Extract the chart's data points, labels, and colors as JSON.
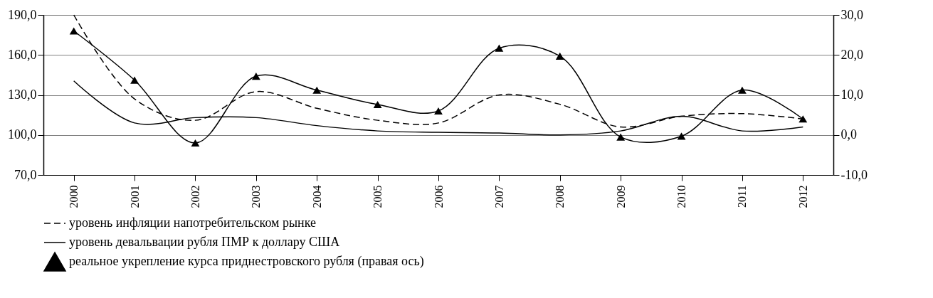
{
  "chart_data": {
    "type": "line",
    "categories": [
      "2000",
      "2001",
      "2002",
      "2003",
      "2004",
      "2005",
      "2006",
      "2007",
      "2008",
      "2009",
      "2010",
      "2011",
      "2012"
    ],
    "series": [
      {
        "name": "уровень инфляции напотребительском рынке",
        "color": "#000000",
        "line_style": "dashed",
        "marker": "none",
        "values": [
          190,
          127,
          111,
          132.5,
          120,
          111,
          109,
          130,
          123,
          106,
          114,
          116,
          112
        ]
      },
      {
        "name": "уровень девальвации рубля ПМР к доллару США",
        "color": "#000000",
        "line_style": "solid",
        "marker": "none",
        "values": [
          140.5,
          109,
          113,
          113,
          107,
          103,
          102,
          101.5,
          100,
          103,
          114,
          103,
          106
        ]
      },
      {
        "name": "реальное укрепление курса приднестровского рубля (правая ось)",
        "color": "#000000",
        "line_style": "solid",
        "marker": "triangle",
        "axis": "y2",
        "values": [
          26,
          13.7,
          -2,
          14.7,
          11.2,
          7.6,
          6,
          21.7,
          19.7,
          -0.5,
          -0.3,
          11.2,
          4
        ]
      }
    ],
    "ylim": [
      70,
      190
    ],
    "yticks": [
      {
        "value": 70,
        "label": "70,0"
      },
      {
        "value": 100,
        "label": "100,0"
      },
      {
        "value": 130,
        "label": "130,0"
      },
      {
        "value": 160,
        "label": "160,0"
      },
      {
        "value": 190,
        "label": "190,0"
      }
    ],
    "y2lim": [
      -10,
      30
    ],
    "y2ticks": [
      {
        "value": -10,
        "label": "-10,0"
      },
      {
        "value": 0,
        "label": "0,0"
      },
      {
        "value": 10,
        "label": "10,0"
      },
      {
        "value": 20,
        "label": "20,0"
      },
      {
        "value": 30,
        "label": "30,0"
      }
    ],
    "grid": "y",
    "legend": "bottom"
  }
}
